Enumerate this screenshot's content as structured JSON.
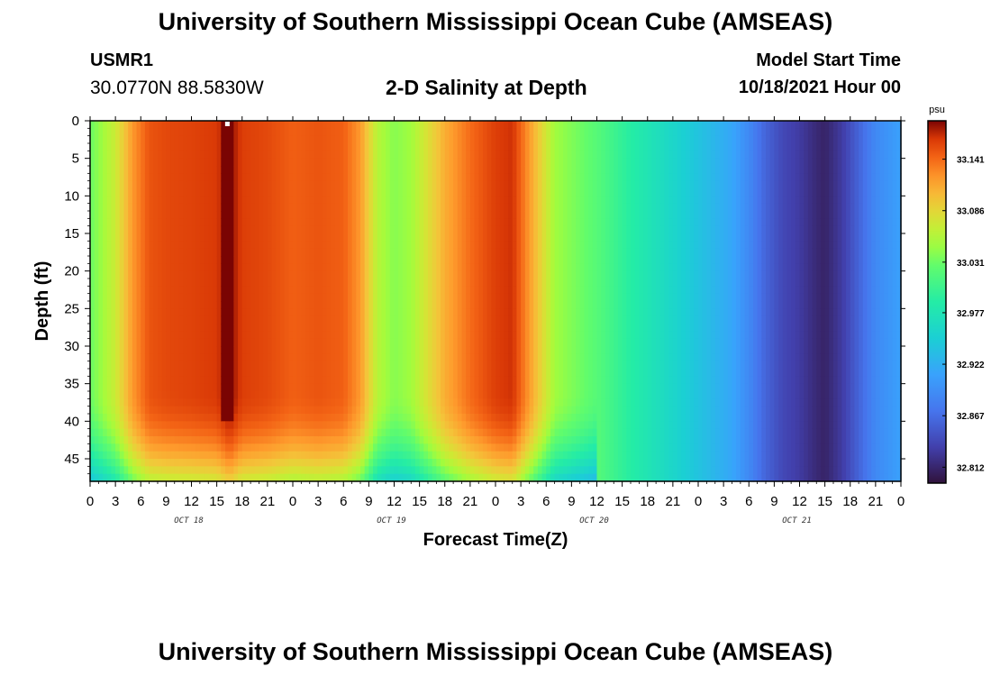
{
  "header": {
    "title": "University of Southern Mississippi Ocean Cube (AMSEAS)",
    "station_id": "USMR1",
    "coordinates": "30.0770N  88.5830W",
    "subtitle": "2-D Salinity at Depth",
    "model_start_label": "Model Start Time",
    "model_start_value": "10/18/2021 Hour 00"
  },
  "footer": {
    "title": "University of Southern Mississippi Ocean Cube (AMSEAS)"
  },
  "colors": {
    "high": "#7a0403",
    "mid_high": "#fb8022",
    "mid": "#a4fc3c",
    "mid_low": "#3e9bfe",
    "low": "#30123b"
  },
  "chart_data": {
    "type": "heatmap",
    "title": "2-D Salinity at Depth",
    "xlabel": "Forecast Time(Z)",
    "ylabel": "Depth (ft)",
    "x_unit": "hours from model start",
    "x_range": [
      0,
      96
    ],
    "x_tick_labels": [
      "0",
      "3",
      "6",
      "9",
      "12",
      "15",
      "18",
      "21",
      "0",
      "3",
      "6",
      "9",
      "12",
      "15",
      "18",
      "21",
      "0",
      "3",
      "6",
      "9",
      "12",
      "15",
      "18",
      "21",
      "0",
      "3",
      "6",
      "9",
      "12",
      "15",
      "18",
      "21",
      "0"
    ],
    "date_labels": [
      {
        "label": "OCT 18",
        "hour": 12
      },
      {
        "label": "OCT 19",
        "hour": 36
      },
      {
        "label": "OCT 20",
        "hour": 60
      },
      {
        "label": "OCT 21",
        "hour": 84
      }
    ],
    "y_range": [
      0,
      48
    ],
    "y_reversed": true,
    "y_ticks": [
      0,
      5,
      10,
      15,
      20,
      25,
      30,
      35,
      40,
      45
    ],
    "colorbar": {
      "unit": "psu",
      "range": [
        32.795,
        33.182
      ],
      "tick_values": [
        33.141,
        33.086,
        33.031,
        32.977,
        32.922,
        32.867,
        32.812
      ],
      "tick_labels": [
        "33.141",
        "33.086",
        "33.031",
        "32.977",
        "32.922",
        "32.867",
        "32.812"
      ]
    },
    "surface_salinity_by_hour": {
      "hours": [
        0,
        3,
        5,
        7,
        9,
        12,
        15,
        16.5,
        18,
        21,
        24,
        27,
        30,
        32,
        34,
        36,
        38,
        42,
        45,
        48,
        50,
        52,
        55,
        60,
        64,
        68,
        72,
        76,
        78,
        80,
        82,
        84,
        86,
        87,
        89,
        91,
        93,
        96
      ],
      "values": [
        33.03,
        33.07,
        33.12,
        33.15,
        33.155,
        33.158,
        33.162,
        33.18,
        33.16,
        33.155,
        33.145,
        33.15,
        33.145,
        33.12,
        33.06,
        33.04,
        33.05,
        33.11,
        33.14,
        33.16,
        33.165,
        33.12,
        33.05,
        33.02,
        32.99,
        32.965,
        32.94,
        32.915,
        32.89,
        32.86,
        32.84,
        32.83,
        32.815,
        32.81,
        32.83,
        32.86,
        32.89,
        32.91
      ]
    },
    "bottom_layer_note": "Salinity decreases toward the bottom (below ~40 ft) during Oct 18 - Oct 19",
    "grid": false,
    "legend": "right"
  }
}
